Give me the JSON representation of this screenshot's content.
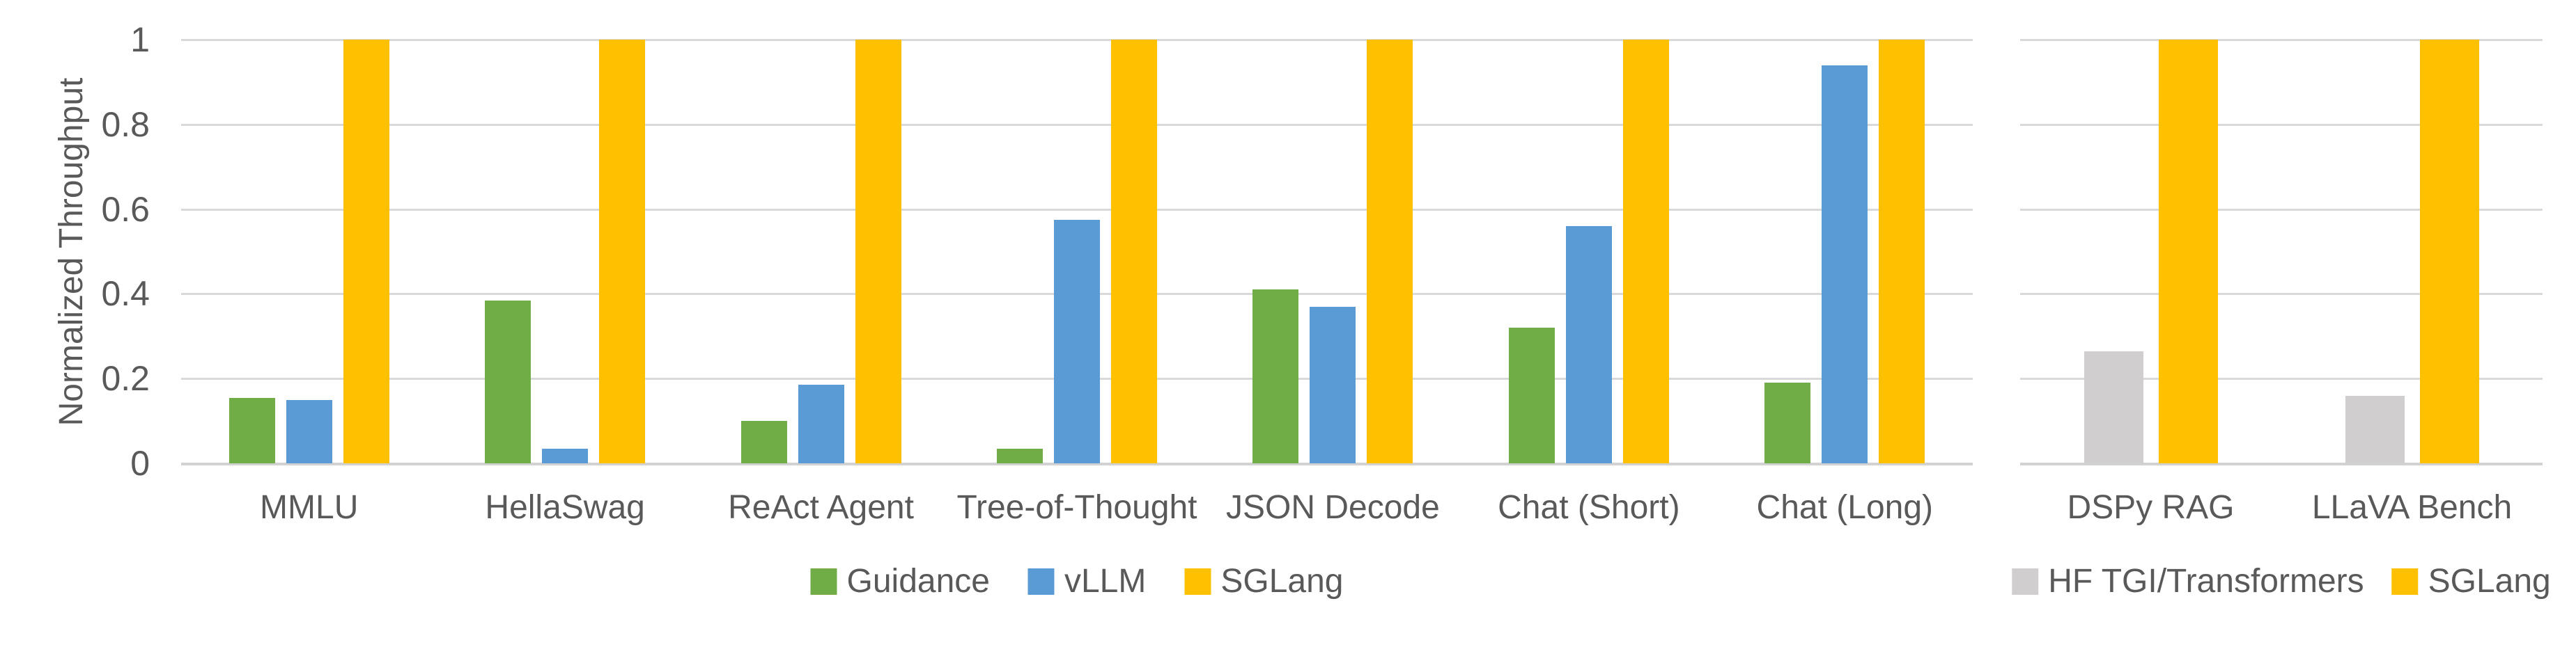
{
  "figure": {
    "background": "#FFFFFF",
    "text_color": "#595959",
    "gridline_color": "#D9D9D9"
  },
  "axis": {
    "title": "Normalized Throughput",
    "tick_labels": [
      "1",
      "0.8",
      "0.6",
      "0.4",
      "0.2",
      "0"
    ],
    "tick_values": [
      1,
      0.8,
      0.6,
      0.4,
      0.2,
      0
    ]
  },
  "chart_data": [
    {
      "type": "bar",
      "title": "",
      "xlabel": "",
      "ylabel": "Normalized Throughput",
      "ylim": [
        0,
        1
      ],
      "yticks": [
        0,
        0.2,
        0.4,
        0.6,
        0.8,
        1
      ],
      "grid": "horizontal",
      "legend_position": "bottom",
      "categories": [
        "MMLU",
        "HellaSwag",
        "ReAct Agent",
        "Tree-of-Thought",
        "JSON Decode",
        "Chat (Short)",
        "Chat (Long)"
      ],
      "series": [
        {
          "name": "Guidance",
          "color": "#70AD47",
          "values": [
            0.155,
            0.385,
            0.1,
            0.035,
            0.41,
            0.32,
            0.19
          ]
        },
        {
          "name": "vLLM",
          "color": "#5B9BD5",
          "values": [
            0.15,
            0.035,
            0.185,
            0.575,
            0.37,
            0.56,
            0.94
          ]
        },
        {
          "name": "SGLang",
          "color": "#FFC000",
          "values": [
            1,
            1,
            1,
            1,
            1,
            1,
            1
          ]
        }
      ]
    },
    {
      "type": "bar",
      "title": "",
      "xlabel": "",
      "ylabel": "",
      "ylim": [
        0,
        1
      ],
      "yticks": [
        0,
        0.2,
        0.4,
        0.6,
        0.8,
        1
      ],
      "grid": "horizontal",
      "legend_position": "bottom",
      "categories": [
        "DSPy RAG",
        "LLaVA Bench"
      ],
      "series": [
        {
          "name": "HF TGI/Transformers",
          "color": "#D0CECE",
          "values": [
            0.265,
            0.16
          ]
        },
        {
          "name": "SGLang",
          "color": "#FFC000",
          "values": [
            1,
            1
          ]
        }
      ]
    }
  ]
}
